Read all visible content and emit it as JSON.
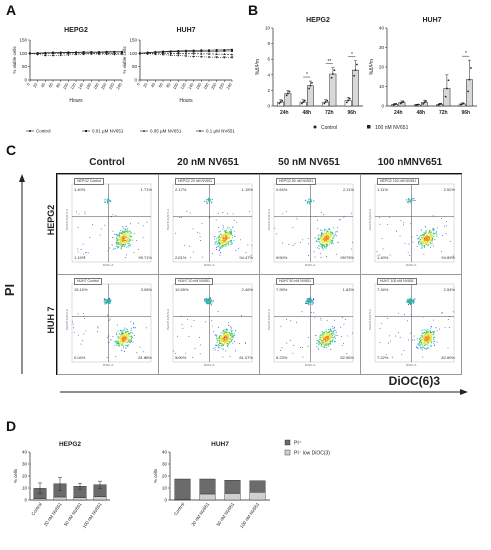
{
  "panels": {
    "A": {
      "letter": "A"
    },
    "B": {
      "letter": "B"
    },
    "C": {
      "letter": "C"
    },
    "D": {
      "letter": "D"
    }
  },
  "chart_data": [
    {
      "panel": "A",
      "type": "line",
      "title": "HEPG2",
      "xlabel": "Hours",
      "ylabel": "% viable cells",
      "x": [
        0,
        20,
        40,
        60,
        80,
        100,
        120,
        140,
        160,
        180,
        200,
        220,
        240
      ],
      "ylim": [
        0,
        150
      ],
      "yticks": [
        0,
        50,
        100,
        150
      ],
      "series": [
        {
          "name": "Control",
          "values": [
            100,
            101,
            102,
            103,
            103,
            104,
            104,
            105,
            105,
            105,
            106,
            106,
            106
          ]
        },
        {
          "name": "0.01 µM NV651",
          "values": [
            100,
            100,
            101,
            102,
            102,
            103,
            103,
            104,
            104,
            104,
            104,
            105,
            105
          ]
        },
        {
          "name": "0.05 µM NV651",
          "values": [
            100,
            99,
            99,
            100,
            100,
            101,
            101,
            100,
            100,
            101,
            100,
            100,
            101
          ]
        },
        {
          "name": "0.1 µM NV651",
          "values": [
            100,
            96,
            92,
            92,
            93,
            94,
            96,
            97,
            98,
            97,
            97,
            96,
            97
          ]
        }
      ]
    },
    {
      "panel": "A",
      "type": "line",
      "title": "HUH7",
      "xlabel": "Hours",
      "ylabel": "% viable cells",
      "x": [
        0,
        20,
        40,
        60,
        80,
        100,
        120,
        140,
        160,
        180,
        200,
        220,
        240
      ],
      "ylim": [
        0,
        150
      ],
      "yticks": [
        0,
        50,
        100,
        150
      ],
      "stars": [
        "*",
        "**",
        "**",
        "**"
      ],
      "series": [
        {
          "name": "Control",
          "values": [
            100,
            103,
            105,
            107,
            108,
            109,
            110,
            111,
            112,
            112,
            113,
            113,
            114
          ]
        },
        {
          "name": "0.01 µM NV651",
          "values": [
            100,
            102,
            104,
            105,
            106,
            106,
            107,
            107,
            108,
            108,
            108,
            109,
            109
          ]
        },
        {
          "name": "0.05 µM NV651",
          "values": [
            100,
            100,
            101,
            101,
            100,
            100,
            99,
            99,
            98,
            98,
            97,
            97,
            96
          ]
        },
        {
          "name": "0.1 µM NV651",
          "values": [
            100,
            98,
            97,
            95,
            93,
            92,
            90,
            88,
            87,
            86,
            85,
            84,
            84
          ]
        }
      ]
    },
    {
      "panel": "B",
      "type": "bar",
      "title": "HEPG2",
      "ylabel": "%ΔΨm",
      "categories": [
        "24h",
        "48h",
        "72h",
        "96h"
      ],
      "ylim": [
        0,
        10
      ],
      "yticks": [
        0,
        2,
        4,
        6,
        8,
        10
      ],
      "series": [
        {
          "name": "Control",
          "values": [
            0.5,
            0.5,
            0.5,
            0.7
          ]
        },
        {
          "name": "100 nM NV651",
          "values": [
            1.6,
            2.6,
            4.1,
            4.6
          ]
        }
      ],
      "errors": [
        [
          0.3,
          0.4
        ],
        [
          0.3,
          0.6
        ],
        [
          0.3,
          0.8
        ],
        [
          0.4,
          1.2
        ]
      ],
      "significance": [
        "",
        "*",
        "**",
        "*"
      ]
    },
    {
      "panel": "B",
      "type": "bar",
      "title": "HUH7",
      "ylabel": "%ΔΨm",
      "categories": [
        "24h",
        "48h",
        "72h",
        "96h"
      ],
      "ylim": [
        0,
        40
      ],
      "yticks": [
        0,
        10,
        20,
        30,
        40
      ],
      "series": [
        {
          "name": "Control",
          "values": [
            0.8,
            0.6,
            0.8,
            1.0
          ]
        },
        {
          "name": "100 nM NV651",
          "values": [
            1.8,
            1.8,
            9.0,
            13.5
          ]
        }
      ],
      "errors": [
        [
          0.5,
          0.8
        ],
        [
          0.3,
          1.2
        ],
        [
          0.6,
          7.0
        ],
        [
          0.6,
          10.0
        ]
      ],
      "significance": [
        "",
        "",
        "",
        "*"
      ]
    },
    {
      "panel": "D",
      "type": "bar",
      "title": "HEPG2",
      "ylabel": "% cells",
      "stacked": true,
      "categories": [
        "Control",
        "20 nM NV651",
        "50 nM NV651",
        "100 nM NV651"
      ],
      "ylim": [
        0,
        40
      ],
      "yticks": [
        0,
        10,
        20,
        30,
        40
      ],
      "series": [
        {
          "name": "PI⁺",
          "values": [
            8.5,
            11.0,
            9.5,
            10.0
          ]
        },
        {
          "name": "PI⁻ low DiOC(3)",
          "values": [
            1.2,
            2.5,
            2.0,
            2.7
          ]
        }
      ],
      "errors": [
        4.5,
        5.5,
        2.5,
        3.0
      ]
    },
    {
      "panel": "D",
      "type": "bar",
      "title": "HUH7",
      "ylabel": "% cells",
      "stacked": true,
      "categories": [
        "Control",
        "20 nM NV651",
        "50 nM NV651",
        "100 nM NV651"
      ],
      "ylim": [
        0,
        40
      ],
      "yticks": [
        0,
        10,
        20,
        30,
        40
      ],
      "series": [
        {
          "name": "PI⁺",
          "values": [
            17.0,
            12.5,
            11.0,
            9.5
          ]
        },
        {
          "name": "PI⁻ low DiOC(3)",
          "values": [
            0.5,
            5.0,
            5.5,
            6.5
          ]
        }
      ]
    }
  ],
  "panelC": {
    "col_headers": [
      "Control",
      "20 nM NV651",
      "50 nM NV651",
      "100 nMNV651"
    ],
    "row_headers": [
      "HEPG2",
      "HUH 7"
    ],
    "y_axis": "PI",
    "x_axis": "DiOC(6)3",
    "cells": [
      {
        "tag": "HEPG2 Control",
        "ul": "1.40%",
        "ur": "1.71%",
        "ll": "1.19%",
        "lr": "95.71%"
      },
      {
        "tag": "HEPG2 20 nM NV651",
        "ul": "2.17%",
        "ur": "1.15%",
        "ll": "2.21%",
        "lr": "94.47%"
      },
      {
        "tag": "HEPG2 50 nM NV651",
        "ul": "0.64%",
        "ur": "2.11%",
        "ll": "0.50%",
        "lr": "95.75%"
      },
      {
        "tag": "HEPG2 100 nM NV651",
        "ul": "1.11%",
        "ur": "2.52%",
        "ll": "1.49%",
        "lr": "94.89%"
      },
      {
        "tag": "HUH7 Control",
        "ul": "15.10%",
        "ur": "3.08%",
        "ll": "0.04%",
        "lr": "81.88%"
      },
      {
        "tag": "HUH7 20 nM NV651",
        "ul": "10.55%",
        "ur": "2.46%",
        "ll": "5.90%",
        "lr": "81.07%"
      },
      {
        "tag": "HUH7 50 nM NV651",
        "ul": "7.99%",
        "ur": "1.83%",
        "ll": "6.23%",
        "lr": "82.96%"
      },
      {
        "tag": "HUH7 100 nM NV651",
        "ul": "7.34%",
        "ur": "2.54%",
        "ll": "7.22%",
        "lr": "82.89%"
      }
    ],
    "cell_xlabel": "DiOC-A",
    "cell_ylabel": "PerCP-Cy5-5-A"
  },
  "legends": {
    "A": [
      "Control",
      "0.01 µM NV651",
      "0.05 µM NV651",
      "0.1 µM NV651"
    ],
    "B": [
      "Control",
      "100 nM NV651"
    ],
    "D": [
      "PI⁺",
      "PI⁻ low DiOC(3)"
    ]
  },
  "colors": {
    "ink": "#222222",
    "bar_dark": "#6b6b6b",
    "bar_light": "#d0d0d0",
    "flow_blue": "#1f3fbf"
  }
}
